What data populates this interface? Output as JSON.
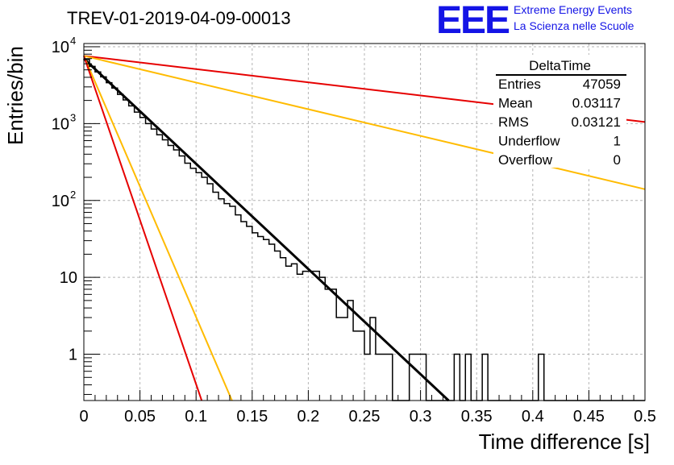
{
  "title": "TREV-01-2019-04-09-00013",
  "logo": {
    "mark": "EEE",
    "line1": "Extreme Energy Events",
    "line2": "La Scienza nelle Scuole",
    "color": "#1414e6"
  },
  "stats_box": {
    "title": "DeltaTime",
    "rows": [
      {
        "label": "Entries",
        "value": "47059"
      },
      {
        "label": "Mean",
        "value": "0.03117"
      },
      {
        "label": "RMS",
        "value": "0.03121"
      },
      {
        "label": "Underflow",
        "value": "1"
      },
      {
        "label": "Overflow",
        "value": "0"
      }
    ]
  },
  "colors": {
    "histogram": "#000000",
    "fit": "#000000",
    "red": "#e60000",
    "orange": "#ffbb00",
    "grid": "#b4b4b4"
  },
  "chart_data": {
    "type": "line",
    "title": "TREV-01-2019-04-09-00013",
    "xlabel": "Time difference [s]",
    "ylabel": "Entries/bin",
    "xlim": [
      0,
      0.5
    ],
    "ylim": [
      0.25,
      11000
    ],
    "y_scale": "log",
    "grid": true,
    "x_ticks": [
      0,
      0.05,
      0.1,
      0.15,
      0.2,
      0.25,
      0.3,
      0.35,
      0.4,
      0.45,
      0.5
    ],
    "x_tick_labels": [
      "0",
      "0.05",
      "0.1",
      "0.15",
      "0.2",
      "0.25",
      "0.3",
      "0.35",
      "0.4",
      "0.45",
      "0.5"
    ],
    "y_ticks": [
      1,
      10,
      100,
      1000,
      10000
    ],
    "histogram": {
      "name": "DeltaTime",
      "bin_width": 0.005,
      "counts": [
        6800,
        5550,
        4700,
        4050,
        3400,
        2900,
        2400,
        2030,
        1700,
        1410,
        1200,
        1000,
        850,
        715,
        615,
        520,
        455,
        380,
        305,
        262,
        230,
        200,
        165,
        128,
        105,
        91,
        84,
        65,
        53,
        46,
        38,
        34,
        31,
        27,
        22,
        18,
        14,
        15,
        11,
        12,
        12,
        12,
        10,
        7,
        7,
        3,
        3,
        5,
        2,
        2,
        1,
        3,
        1,
        1,
        1,
        0,
        0,
        0,
        1,
        1,
        1,
        0,
        0,
        0,
        0,
        0,
        1,
        0,
        1,
        0,
        0,
        1,
        0,
        0,
        0,
        0,
        0,
        0,
        0,
        0,
        0,
        1,
        0,
        0,
        0,
        0,
        0,
        0,
        0,
        0,
        0,
        0,
        0,
        0,
        0,
        0,
        0,
        0,
        0,
        0
      ]
    },
    "series": [
      {
        "color": "#000000",
        "x": [
          0,
          0.325
        ],
        "y": [
          7000,
          0.25
        ]
      },
      {
        "color": "#e60000",
        "x": [
          0,
          0.5
        ],
        "y": [
          7600,
          1050
        ]
      },
      {
        "color": "#ffbb00",
        "x": [
          0,
          0.5
        ],
        "y": [
          7600,
          140
        ]
      },
      {
        "color": "#ffbb00",
        "x": [
          0,
          0.132
        ],
        "y": [
          7600,
          0.25
        ]
      },
      {
        "color": "#e60000",
        "x": [
          0,
          0.105
        ],
        "y": [
          7600,
          0.25
        ]
      }
    ]
  }
}
